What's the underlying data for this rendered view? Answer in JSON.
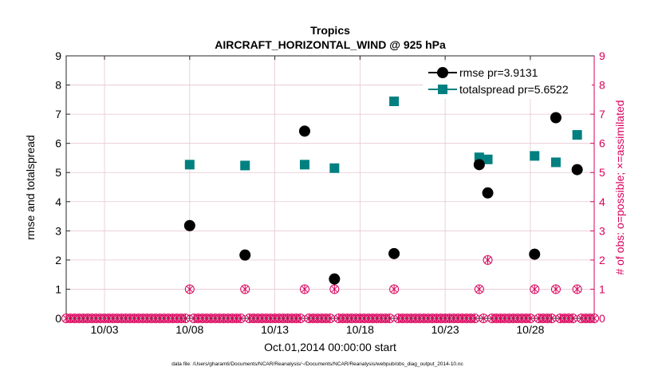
{
  "chart_data": {
    "type": "scatter",
    "title": "Tropics",
    "subtitle": "AIRCRAFT_HORIZONTAL_WIND @ 925 hPa",
    "xlabel": "Oct.01,2014 00:00:00 start",
    "ylabel": "rmse and totalspread",
    "y2label": "# of obs: o=possible; ×=assimilated",
    "footer": "data file: /Users/gharamti/Documents/NCAR/Reanalysis/~/Documents/NCAR/Reanalysis/webpub/obs_diag_output_2014-10.nc",
    "xlim": [
      0.5,
      31.5
    ],
    "ylim": [
      0,
      9
    ],
    "y2lim": [
      0,
      9
    ],
    "x_ticks": [
      2.75,
      7.75,
      12.75,
      17.75,
      22.75,
      27.75
    ],
    "x_tick_labels": [
      "10/03",
      "10/08",
      "10/13",
      "10/18",
      "10/23",
      "10/28"
    ],
    "y_ticks": [
      0,
      1,
      2,
      3,
      4,
      5,
      6,
      7,
      8,
      9
    ],
    "y_tick_labels": [
      "0",
      "1",
      "2",
      "3",
      "4",
      "5",
      "6",
      "7",
      "8",
      "9"
    ],
    "grid": true,
    "legend_position": "top-right",
    "series": [
      {
        "name": "rmse pr=3.9131",
        "color": "#000000",
        "marker": "circle",
        "axis": "left",
        "points": [
          [
            7.75,
            3.18
          ],
          [
            11.0,
            2.17
          ],
          [
            14.5,
            6.42
          ],
          [
            16.25,
            1.35
          ],
          [
            19.75,
            2.22
          ],
          [
            24.75,
            5.27
          ],
          [
            25.25,
            4.3
          ],
          [
            28.0,
            2.2
          ],
          [
            29.25,
            6.88
          ],
          [
            30.5,
            5.1
          ]
        ]
      },
      {
        "name": "totalspread pr=5.6522",
        "color": "#008080",
        "marker": "square",
        "axis": "left",
        "points": [
          [
            7.75,
            5.27
          ],
          [
            11.0,
            5.24
          ],
          [
            14.5,
            5.27
          ],
          [
            16.25,
            5.15
          ],
          [
            19.75,
            7.44
          ],
          [
            24.75,
            5.52
          ],
          [
            25.25,
            5.45
          ],
          [
            28.0,
            5.57
          ],
          [
            29.25,
            5.35
          ],
          [
            30.5,
            6.29
          ]
        ]
      },
      {
        "name": "# of obs possible",
        "color": "#d9005b",
        "marker": "circle-open",
        "axis": "right",
        "x_start": 0.5,
        "x_end": 31.5,
        "x_step": 0.25,
        "nonzero": [
          [
            7.75,
            1
          ],
          [
            11.0,
            1
          ],
          [
            14.5,
            1
          ],
          [
            16.25,
            1
          ],
          [
            19.75,
            1
          ],
          [
            24.75,
            1
          ],
          [
            25.25,
            2
          ],
          [
            28.0,
            1
          ],
          [
            29.25,
            1
          ],
          [
            30.5,
            1
          ]
        ]
      },
      {
        "name": "# of obs assimilated",
        "color": "#d9005b",
        "marker": "x",
        "axis": "right",
        "x_start": 0.5,
        "x_end": 31.5,
        "x_step": 0.25,
        "nonzero": [
          [
            7.75,
            1
          ],
          [
            11.0,
            1
          ],
          [
            14.5,
            1
          ],
          [
            16.25,
            1
          ],
          [
            19.75,
            1
          ],
          [
            24.75,
            1
          ],
          [
            25.25,
            2
          ],
          [
            28.0,
            1
          ],
          [
            29.25,
            1
          ],
          [
            30.5,
            1
          ]
        ]
      }
    ]
  }
}
